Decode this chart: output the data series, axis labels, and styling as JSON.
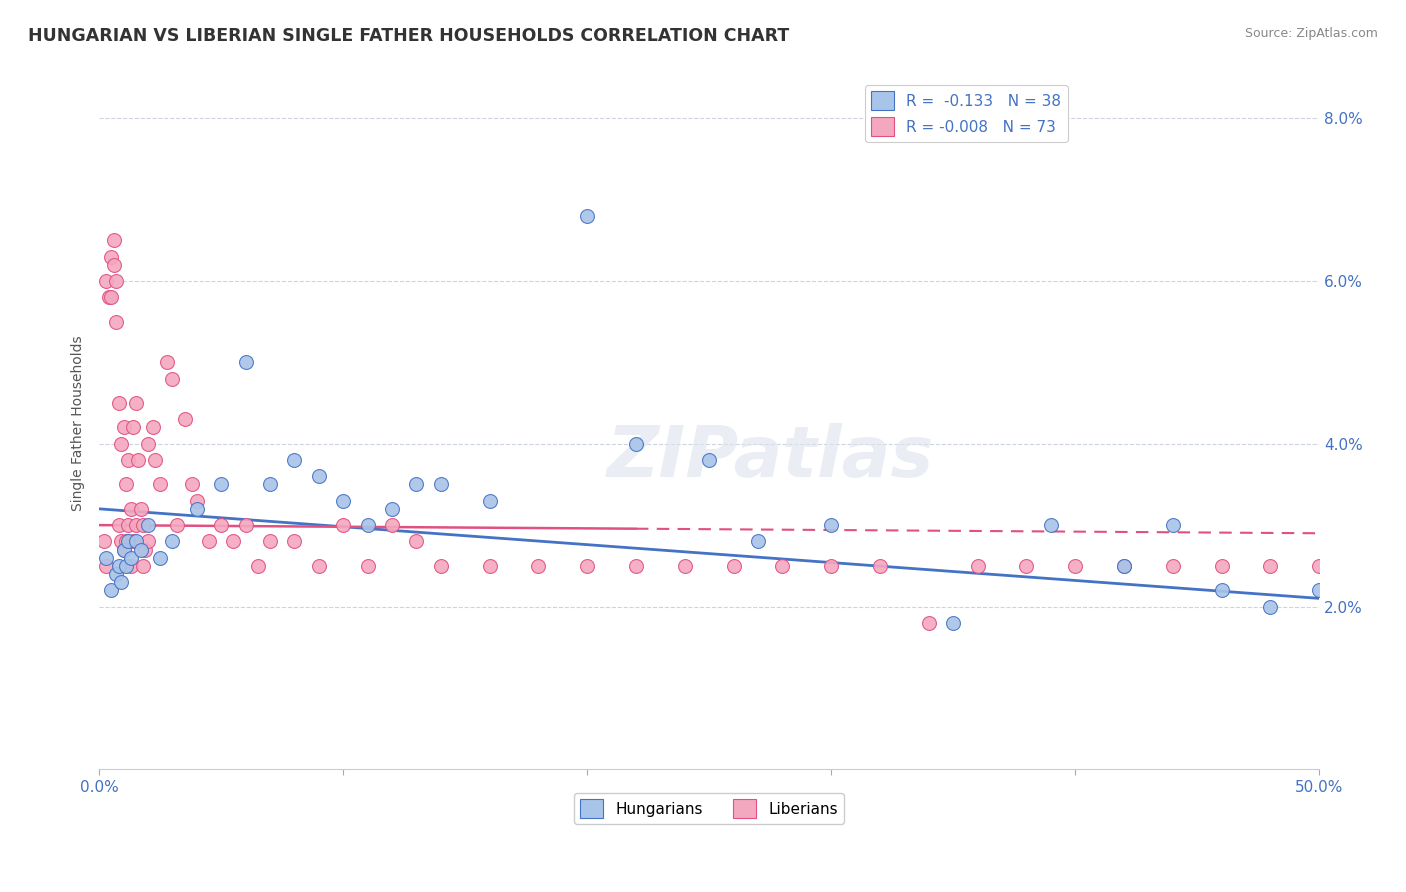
{
  "title": "HUNGARIAN VS LIBERIAN SINGLE FATHER HOUSEHOLDS CORRELATION CHART",
  "source": "Source: ZipAtlas.com",
  "ylabel": "Single Father Households",
  "xlim": [
    0.0,
    0.5
  ],
  "ylim": [
    0.0,
    0.085
  ],
  "yticks": [
    0.02,
    0.04,
    0.06,
    0.08
  ],
  "ytick_labels": [
    "2.0%",
    "4.0%",
    "6.0%",
    "8.0%"
  ],
  "xticks": [
    0.0,
    0.1,
    0.2,
    0.3,
    0.4,
    0.5
  ],
  "xtick_labels": [
    "0.0%",
    "",
    "",
    "",
    "",
    "50.0%"
  ],
  "hungarian_R": -0.133,
  "hungarian_N": 38,
  "liberian_R": -0.008,
  "liberian_N": 73,
  "hungarian_color": "#a8c4e8",
  "liberian_color": "#f4a8c0",
  "hungarian_line_color": "#4472c4",
  "liberian_line_color": "#e05080",
  "watermark": "ZIPatlas",
  "hungarian_points_x": [
    0.003,
    0.005,
    0.007,
    0.008,
    0.009,
    0.01,
    0.011,
    0.012,
    0.013,
    0.015,
    0.017,
    0.02,
    0.025,
    0.03,
    0.04,
    0.05,
    0.06,
    0.07,
    0.08,
    0.09,
    0.1,
    0.11,
    0.12,
    0.13,
    0.14,
    0.16,
    0.2,
    0.22,
    0.25,
    0.27,
    0.3,
    0.35,
    0.39,
    0.42,
    0.44,
    0.46,
    0.48,
    0.5
  ],
  "hungarian_points_y": [
    0.026,
    0.022,
    0.024,
    0.025,
    0.023,
    0.027,
    0.025,
    0.028,
    0.026,
    0.028,
    0.027,
    0.03,
    0.026,
    0.028,
    0.032,
    0.035,
    0.05,
    0.035,
    0.038,
    0.036,
    0.033,
    0.03,
    0.032,
    0.035,
    0.035,
    0.033,
    0.068,
    0.04,
    0.038,
    0.028,
    0.03,
    0.018,
    0.03,
    0.025,
    0.03,
    0.022,
    0.02,
    0.022
  ],
  "liberian_points_x": [
    0.002,
    0.003,
    0.003,
    0.004,
    0.005,
    0.005,
    0.006,
    0.006,
    0.007,
    0.007,
    0.008,
    0.008,
    0.009,
    0.009,
    0.01,
    0.01,
    0.011,
    0.011,
    0.012,
    0.012,
    0.013,
    0.013,
    0.014,
    0.014,
    0.015,
    0.015,
    0.016,
    0.017,
    0.018,
    0.018,
    0.019,
    0.02,
    0.02,
    0.022,
    0.023,
    0.025,
    0.028,
    0.03,
    0.032,
    0.035,
    0.038,
    0.04,
    0.045,
    0.05,
    0.055,
    0.06,
    0.065,
    0.07,
    0.08,
    0.09,
    0.1,
    0.11,
    0.12,
    0.13,
    0.14,
    0.16,
    0.18,
    0.2,
    0.22,
    0.24,
    0.26,
    0.28,
    0.3,
    0.32,
    0.34,
    0.36,
    0.38,
    0.4,
    0.42,
    0.44,
    0.46,
    0.48,
    0.5
  ],
  "liberian_points_y": [
    0.028,
    0.025,
    0.06,
    0.058,
    0.063,
    0.058,
    0.065,
    0.062,
    0.06,
    0.055,
    0.03,
    0.045,
    0.04,
    0.028,
    0.042,
    0.027,
    0.035,
    0.028,
    0.038,
    0.03,
    0.032,
    0.025,
    0.042,
    0.028,
    0.045,
    0.03,
    0.038,
    0.032,
    0.03,
    0.025,
    0.027,
    0.04,
    0.028,
    0.042,
    0.038,
    0.035,
    0.05,
    0.048,
    0.03,
    0.043,
    0.035,
    0.033,
    0.028,
    0.03,
    0.028,
    0.03,
    0.025,
    0.028,
    0.028,
    0.025,
    0.03,
    0.025,
    0.03,
    0.028,
    0.025,
    0.025,
    0.025,
    0.025,
    0.025,
    0.025,
    0.025,
    0.025,
    0.025,
    0.025,
    0.018,
    0.025,
    0.025,
    0.025,
    0.025,
    0.025,
    0.025,
    0.025,
    0.025
  ]
}
